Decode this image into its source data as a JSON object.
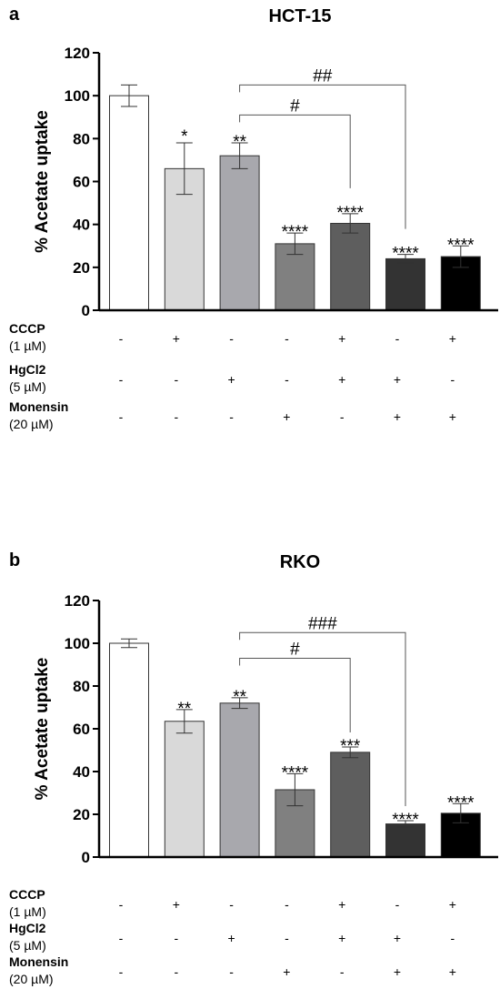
{
  "chart_data": [
    {
      "type": "bar",
      "panel_label": "a",
      "title": "HCT-15",
      "ylabel": "% Acetate uptake",
      "ylim": [
        0,
        120
      ],
      "yticks": [
        0,
        20,
        40,
        60,
        80,
        100,
        120
      ],
      "yticklabels": [
        "0",
        "20",
        "40",
        "60",
        "80",
        "100",
        "120"
      ],
      "values": [
        100,
        66,
        72,
        31,
        40.5,
        24,
        25
      ],
      "errors": [
        5,
        12,
        6,
        5,
        4.5,
        2,
        5
      ],
      "bar_colors": [
        "#ffffff",
        "#d9d9d9",
        "#a8a8ad",
        "#808080",
        "#5e5e5e",
        "#333333",
        "#000000"
      ],
      "annotations": [
        "",
        "*",
        "**",
        "****",
        "****",
        "****",
        "****"
      ],
      "brackets": [
        {
          "from": 2,
          "to": 4,
          "label": "#"
        },
        {
          "from": 2,
          "to": 5,
          "label": "##"
        }
      ],
      "conditions": [
        {
          "name": "CCCP",
          "dose": "(1 µM)",
          "values": [
            "-",
            "+",
            "-",
            "-",
            "+",
            "-",
            "+"
          ]
        },
        {
          "name": "HgCl2",
          "dose": "(5 µM)",
          "values": [
            "-",
            "-",
            "+",
            "-",
            "+",
            "+",
            "-"
          ]
        },
        {
          "name": "Monensin",
          "dose": "(20 µM)",
          "values": [
            "-",
            "-",
            "-",
            "+",
            "-",
            "+",
            "+"
          ]
        }
      ]
    },
    {
      "type": "bar",
      "panel_label": "b",
      "title": "RKO",
      "ylabel": "% Acetate uptake",
      "ylim": [
        0,
        120
      ],
      "yticks": [
        0,
        20,
        40,
        60,
        80,
        100,
        120
      ],
      "yticklabels": [
        "0",
        "20",
        "40",
        "60",
        "80",
        "100",
        "120"
      ],
      "values": [
        100,
        63.5,
        72,
        31.5,
        49,
        15.5,
        20.5
      ],
      "errors": [
        2,
        5.5,
        2.5,
        7.5,
        2.5,
        1.5,
        4.5
      ],
      "bar_colors": [
        "#ffffff",
        "#d9d9d9",
        "#a8a8ad",
        "#808080",
        "#5e5e5e",
        "#333333",
        "#000000"
      ],
      "annotations": [
        "",
        "**",
        "**",
        "****",
        "***",
        "****",
        "****"
      ],
      "brackets": [
        {
          "from": 2,
          "to": 4,
          "label": "#"
        },
        {
          "from": 2,
          "to": 5,
          "label": "###"
        }
      ],
      "conditions": [
        {
          "name": "CCCP",
          "dose": "(1 µM)",
          "values": [
            "-",
            "+",
            "-",
            "-",
            "+",
            "-",
            "+"
          ]
        },
        {
          "name": "HgCl2",
          "dose": "(5 µM)",
          "values": [
            "-",
            "-",
            "+",
            "-",
            "+",
            "+",
            "-"
          ]
        },
        {
          "name": "Monensin",
          "dose": "(20 µM)",
          "values": [
            "-",
            "-",
            "-",
            "+",
            "-",
            "+",
            "+"
          ]
        }
      ]
    }
  ]
}
